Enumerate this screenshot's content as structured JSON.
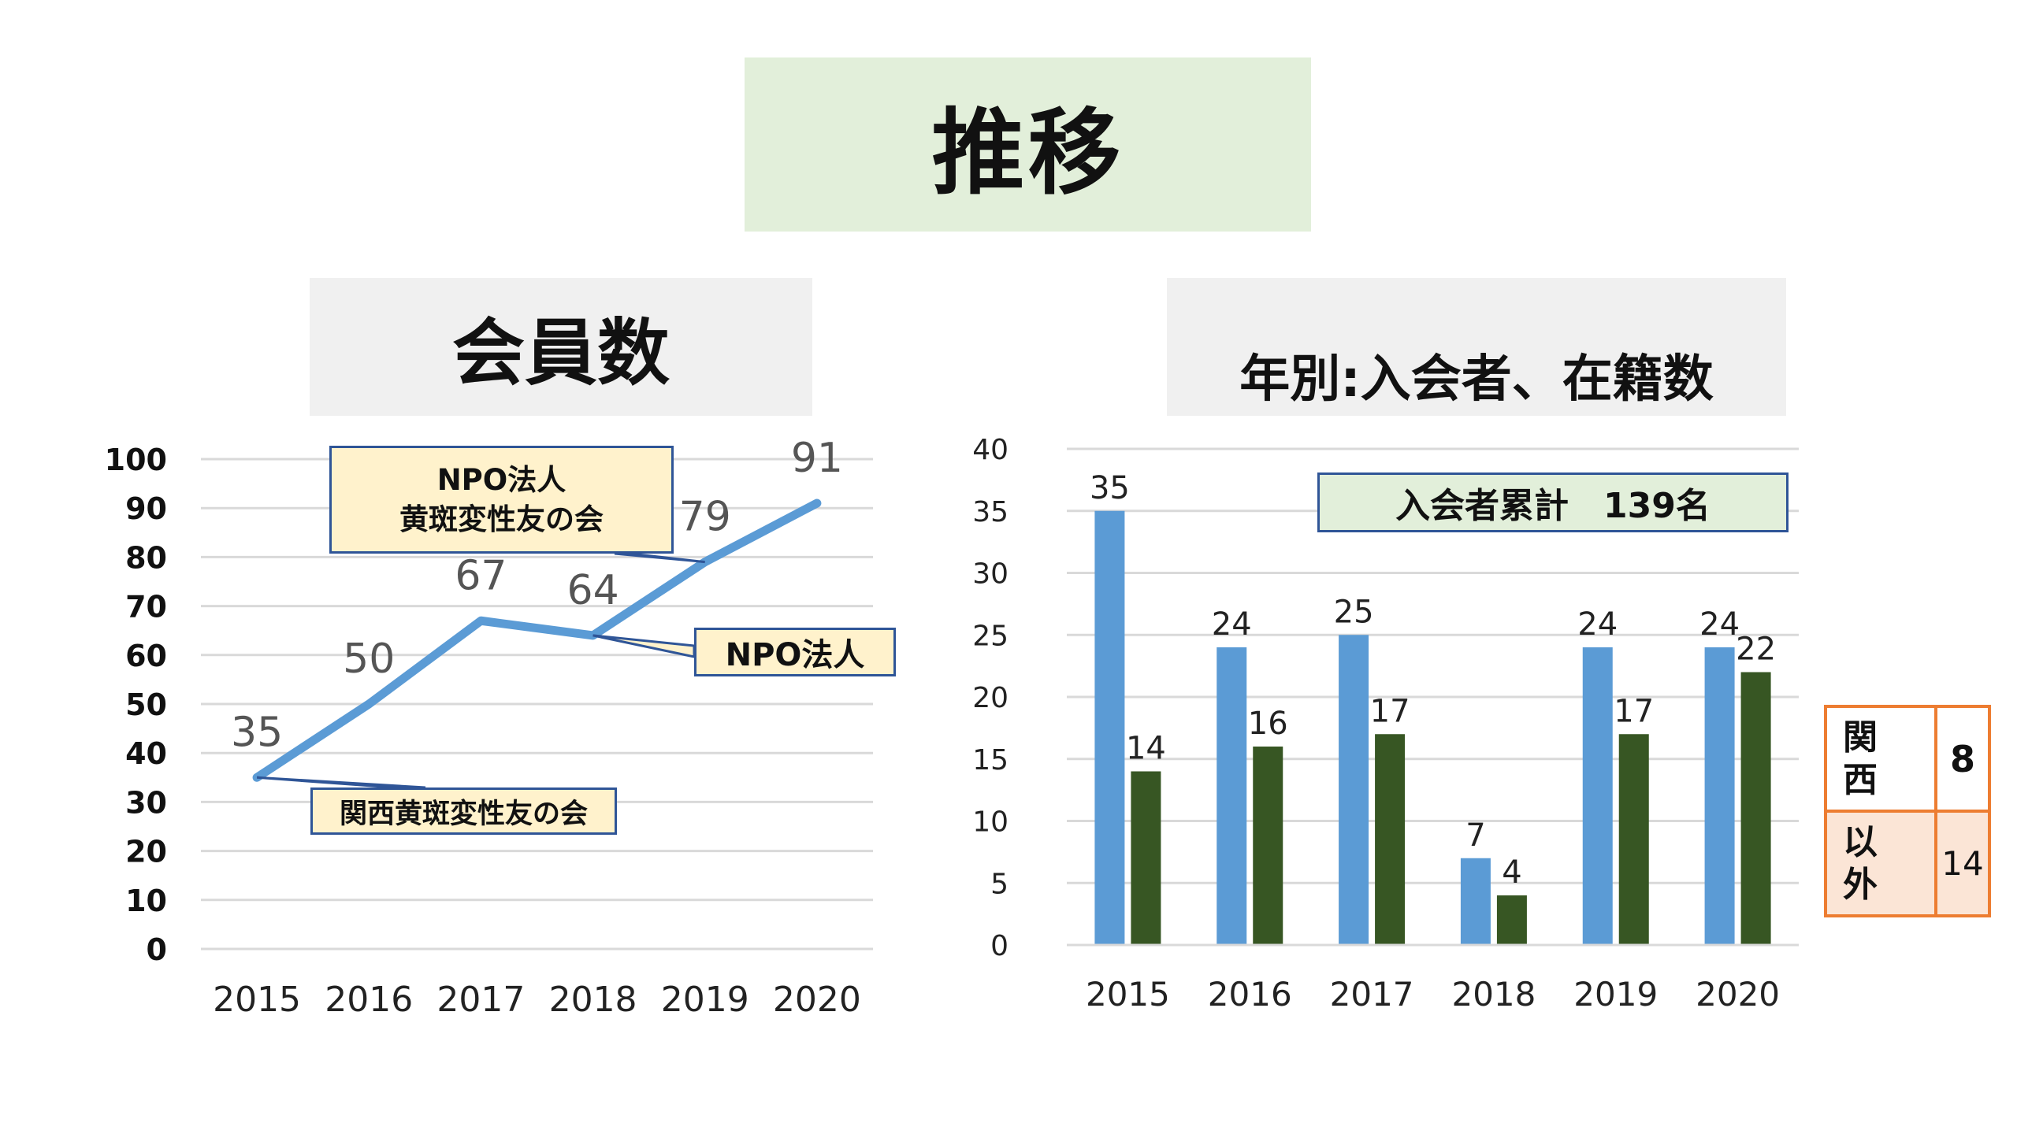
{
  "page_title": "推移",
  "charts_headers": {
    "left": "会員数",
    "right": "年別:入会者、在籍数"
  },
  "chart_data": [
    {
      "type": "line",
      "title": "会員数",
      "x": [
        "2015",
        "2016",
        "2017",
        "2018",
        "2019",
        "2020"
      ],
      "series": [
        {
          "values": [
            35,
            50,
            67,
            64,
            79,
            91
          ],
          "color": "#5b9bd5"
        }
      ],
      "ylim": [
        0,
        100
      ],
      "yticks": [
        "0",
        "10",
        "20",
        "30",
        "40",
        "50",
        "60",
        "70",
        "80",
        "90",
        "100"
      ],
      "grid": true,
      "annotations": {
        "npo_join": [
          "NPO法人",
          "黄斑変性友の会"
        ],
        "npo": "NPO法人",
        "kansai": "関西黄斑変性友の会"
      }
    },
    {
      "type": "bar",
      "title": "年別:入会者、在籍数",
      "categories": [
        "2015",
        "2016",
        "2017",
        "2018",
        "2019",
        "2020"
      ],
      "series": [
        {
          "values": [
            35,
            24,
            25,
            7,
            24,
            24
          ],
          "color": "#5b9bd5"
        },
        {
          "values": [
            14,
            16,
            17,
            4,
            17,
            22
          ],
          "color": "#375623"
        }
      ],
      "ylim": [
        0,
        40
      ],
      "yticks": [
        "0",
        "5",
        "10",
        "15",
        "20",
        "25",
        "30",
        "35",
        "40"
      ],
      "grid": true,
      "total_label": "入会者累計　139名"
    }
  ],
  "region_table": {
    "rows": [
      {
        "label_lines": [
          "関",
          "西"
        ],
        "value": "8"
      },
      {
        "label_lines": [
          "以",
          "外"
        ],
        "value": "14"
      }
    ]
  }
}
